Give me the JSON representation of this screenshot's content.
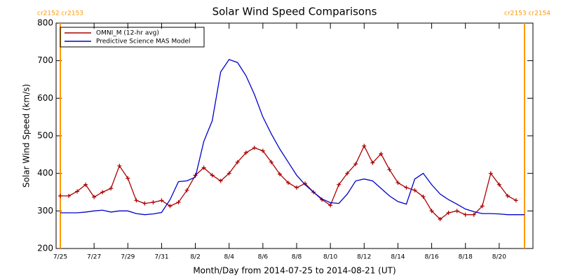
{
  "chart_data": {
    "type": "line",
    "title": "Solar Wind Speed Comparisons",
    "xlabel": "Month/Day from 2014-07-25 to 2014-08-21 (UT)",
    "ylabel": "Solar Wind Speed (km/s)",
    "xlim": [
      -0.25,
      28.0
    ],
    "ylim": [
      200,
      800
    ],
    "yticks": [
      200,
      300,
      400,
      500,
      600,
      700,
      800
    ],
    "xticks": [
      {
        "value": 0,
        "label": "7/25"
      },
      {
        "value": 2,
        "label": "7/27"
      },
      {
        "value": 4,
        "label": "7/29"
      },
      {
        "value": 6,
        "label": "7/31"
      },
      {
        "value": 8,
        "label": "8/2"
      },
      {
        "value": 10,
        "label": "8/4"
      },
      {
        "value": 12,
        "label": "8/6"
      },
      {
        "value": 14,
        "label": "8/8"
      },
      {
        "value": 16,
        "label": "8/10"
      },
      {
        "value": 18,
        "label": "8/12"
      },
      {
        "value": 20,
        "label": "8/14"
      },
      {
        "value": 22,
        "label": "8/16"
      },
      {
        "value": 24,
        "label": "8/18"
      },
      {
        "value": 26,
        "label": "8/20"
      }
    ],
    "legend": "upper left",
    "rotation_boundaries": [
      {
        "x": 0,
        "label": "cr2152 cr2153",
        "color": "#ff9900"
      },
      {
        "x": 27.5,
        "label": "cr2153 cr2154",
        "color": "#ff9900"
      }
    ],
    "series": [
      {
        "name": "OMNI_M (12-hr avg)",
        "color": "#aa0000",
        "markers": true,
        "x": [
          0,
          0.5,
          1,
          1.5,
          2,
          2.5,
          3,
          3.5,
          4,
          4.5,
          5,
          5.5,
          6,
          6.5,
          7,
          7.5,
          8,
          8.5,
          9,
          9.5,
          10,
          10.5,
          11,
          11.5,
          12,
          12.5,
          13,
          13.5,
          14,
          14.5,
          15,
          15.5,
          16,
          16.5,
          17,
          17.5,
          18,
          18.5,
          19,
          19.5,
          20,
          20.5,
          21,
          21.5,
          22,
          22.5,
          23,
          23.5,
          24,
          24.5,
          25,
          25.5,
          26,
          26.5,
          27
        ],
        "values": [
          340,
          340,
          352,
          370,
          337,
          350,
          360,
          420,
          387,
          328,
          320,
          323,
          328,
          313,
          323,
          355,
          395,
          415,
          395,
          380,
          400,
          430,
          455,
          468,
          460,
          430,
          398,
          375,
          362,
          373,
          350,
          330,
          315,
          370,
          400,
          425,
          473,
          428,
          452,
          410,
          375,
          362,
          355,
          338,
          300,
          278,
          295,
          300,
          290,
          290,
          313,
          400,
          370,
          340,
          328
        ]
      },
      {
        "name": "Predictive Science MAS Model",
        "color": "#0000cc",
        "markers": false,
        "x": [
          0,
          0.5,
          1,
          1.5,
          2,
          2.5,
          3,
          3.5,
          4,
          4.5,
          5,
          5.5,
          6,
          6.5,
          7,
          7.5,
          8,
          8.5,
          9,
          9.5,
          10,
          10.5,
          11,
          11.5,
          12,
          12.5,
          13,
          13.5,
          14,
          14.5,
          15,
          15.5,
          16,
          16.5,
          17,
          17.5,
          18,
          18.5,
          19,
          19.5,
          20,
          20.5,
          21,
          21.5,
          22,
          22.5,
          23,
          23.5,
          24,
          24.5,
          25,
          25.5,
          26,
          26.5,
          27,
          27.5
        ],
        "values": [
          295,
          295,
          295,
          297,
          300,
          302,
          297,
          300,
          300,
          293,
          290,
          292,
          296,
          330,
          378,
          380,
          390,
          485,
          540,
          670,
          703,
          695,
          660,
          610,
          550,
          505,
          465,
          430,
          395,
          370,
          350,
          332,
          322,
          320,
          345,
          380,
          385,
          380,
          360,
          340,
          325,
          318,
          385,
          400,
          370,
          345,
          330,
          318,
          305,
          298,
          293,
          293,
          292,
          290,
          290,
          290
        ]
      }
    ]
  }
}
